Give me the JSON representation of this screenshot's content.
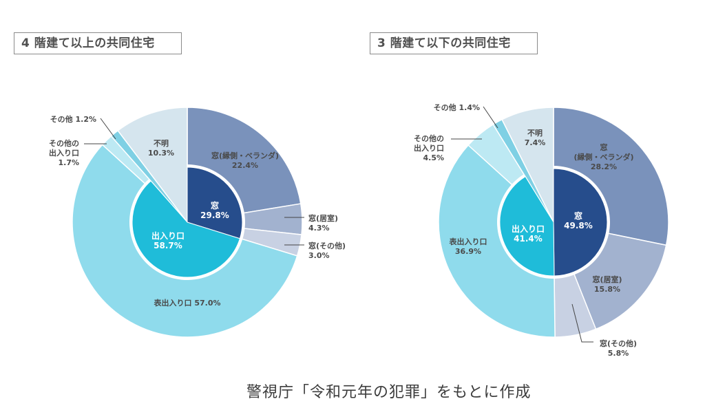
{
  "source": "警視庁「令和元年の犯罪」をもとに作成",
  "colors": {
    "window_inner": "#264d8c",
    "entrance_inner": "#1fbcd9",
    "window_veranda": "#7a92bb",
    "window_room": "#a2b2cf",
    "window_other": "#c8d1e3",
    "front_entrance": "#8fdbec",
    "other_entrance": "#bde9f3",
    "other": "#7fd0e4",
    "unknown": "#d5e5ee"
  },
  "chart_data": [
    {
      "type": "pie",
      "subtype": "double-donut",
      "title": "4 階建て以上の共同住宅",
      "inner": [
        {
          "label": "窓",
          "value": 29.8,
          "color_key": "window_inner"
        },
        {
          "label": "出入り口",
          "value": 58.7,
          "color_key": "entrance_inner"
        }
      ],
      "outer": [
        {
          "label": "窓(縁側・ベランダ)",
          "value": 22.4,
          "color_key": "window_veranda"
        },
        {
          "label": "窓(居室)",
          "value": 4.3,
          "color_key": "window_room"
        },
        {
          "label": "窓(その他)",
          "value": 3.0,
          "color_key": "window_other"
        },
        {
          "label": "表出入り口",
          "value": 57.0,
          "color_key": "front_entrance"
        },
        {
          "label": "その他の出入り口",
          "value": 1.7,
          "color_key": "other_entrance"
        },
        {
          "label": "その他",
          "value": 1.2,
          "color_key": "other"
        },
        {
          "label": "不明",
          "value": 10.3,
          "color_key": "unknown"
        }
      ]
    },
    {
      "type": "pie",
      "subtype": "double-donut",
      "title": "3 階建て以下の共同住宅",
      "inner": [
        {
          "label": "窓",
          "value": 49.8,
          "color_key": "window_inner"
        },
        {
          "label": "出入り口",
          "value": 41.4,
          "color_key": "entrance_inner"
        }
      ],
      "outer": [
        {
          "label": "窓(縁側・ベランダ)",
          "value": 28.2,
          "color_key": "window_veranda"
        },
        {
          "label": "窓(居室)",
          "value": 15.8,
          "color_key": "window_room"
        },
        {
          "label": "窓(その他)",
          "value": 5.8,
          "color_key": "window_other"
        },
        {
          "label": "表出入り口",
          "value": 36.9,
          "color_key": "front_entrance"
        },
        {
          "label": "その他の出入り口",
          "value": 4.5,
          "color_key": "other_entrance"
        },
        {
          "label": "その他",
          "value": 1.4,
          "color_key": "other"
        },
        {
          "label": "不明",
          "value": 7.4,
          "color_key": "unknown"
        }
      ]
    }
  ],
  "labels_left": {
    "veranda": [
      "窓(縁側・ベランダ)",
      "22.4%"
    ],
    "room": [
      "窓(居室)",
      "4.3%"
    ],
    "wother": [
      "窓(その他)",
      "3.0%"
    ],
    "front": [
      "表出入り口 57.0%"
    ],
    "oentr": [
      "その他の",
      "出入り口",
      "1.7%"
    ],
    "other": [
      "その他 1.2%"
    ],
    "unknown": [
      "不明",
      "10.3%"
    ],
    "inner_window": [
      "窓",
      "29.8%"
    ],
    "inner_entrance": [
      "出入り口",
      "58.7%"
    ]
  },
  "labels_right": {
    "veranda": [
      "窓",
      "(縁側・ベランダ)",
      "28.2%"
    ],
    "room": [
      "窓(居室)",
      "15.8%"
    ],
    "wother": [
      "窓(その他)",
      "5.8%"
    ],
    "front": [
      "表出入り口",
      "36.9%"
    ],
    "oentr": [
      "その他の",
      "出入り口",
      "4.5%"
    ],
    "other": [
      "その他 1.4%"
    ],
    "unknown": [
      "不明",
      "7.4%"
    ],
    "inner_window": [
      "窓",
      "49.8%"
    ],
    "inner_entrance": [
      "出入り口",
      "41.4%"
    ]
  }
}
